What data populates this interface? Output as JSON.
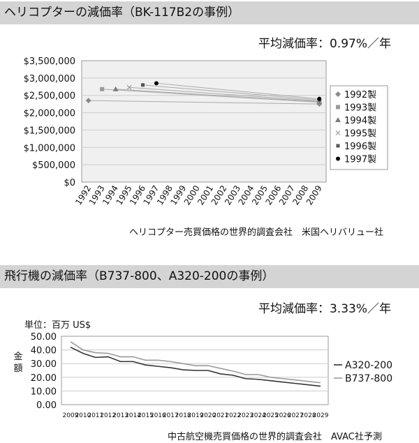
{
  "section1": {
    "title": "ヘリコプターの減価率（BK-117B2の事例）",
    "avg_label": "平均減価率：0.97%／年",
    "source": "ヘリコプター売買価格の世界的調査会社　米国ヘリバリュー社"
  },
  "section2": {
    "title": "飛行機の減価率（B737-800、A320-200の事例）",
    "avg_label": "平均減価率：3.33%／年",
    "unit_label": "単位：百万 US$",
    "ylabel": "金額",
    "source": "中古航空機売買価格の世界的調査会社　AVAC社予測"
  },
  "chart_data": [
    {
      "type": "line",
      "title": "",
      "xlabel": "",
      "ylabel": "",
      "ylim": [
        0,
        3500000
      ],
      "yticks": [
        "$0",
        "$500,000",
        "$1,000,000",
        "$1,500,000",
        "$2,000,000",
        "$2,500,000",
        "$3,000,000",
        "$3,500,000"
      ],
      "categories": [
        "1992",
        "1993",
        "1994",
        "1995",
        "1996",
        "1997",
        "1998",
        "1999",
        "2000",
        "2001",
        "2002",
        "2003",
        "2004",
        "2005",
        "2006",
        "2007",
        "2008",
        "2009"
      ],
      "legend_position": "right",
      "grid": true,
      "series": [
        {
          "name": "1992製",
          "marker": "diamond",
          "color": "#8a8a8a",
          "points": [
            {
              "x": "1992",
              "y": 2350000
            },
            {
              "x": "2009",
              "y": 2250000
            }
          ]
        },
        {
          "name": "1993製",
          "marker": "square",
          "color": "#9a9a9a",
          "points": [
            {
              "x": "1993",
              "y": 2680000
            },
            {
              "x": "2009",
              "y": 2300000
            }
          ]
        },
        {
          "name": "1994製",
          "marker": "triangle",
          "color": "#7a7a7a",
          "points": [
            {
              "x": "1994",
              "y": 2680000
            },
            {
              "x": "2009",
              "y": 2320000
            }
          ]
        },
        {
          "name": "1995製",
          "marker": "x",
          "color": "#9a9a9a",
          "points": [
            {
              "x": "1995",
              "y": 2730000
            },
            {
              "x": "2009",
              "y": 2340000
            }
          ]
        },
        {
          "name": "1996製",
          "marker": "square-small",
          "color": "#555555",
          "points": [
            {
              "x": "1996",
              "y": 2800000
            },
            {
              "x": "2009",
              "y": 2370000
            }
          ]
        },
        {
          "name": "1997製",
          "marker": "circle",
          "color": "#000000",
          "points": [
            {
              "x": "1997",
              "y": 2850000
            },
            {
              "x": "2009",
              "y": 2400000
            }
          ]
        }
      ]
    },
    {
      "type": "line",
      "title": "",
      "xlabel": "",
      "ylabel": "金額",
      "ylim": [
        0,
        50
      ],
      "yticks": [
        "0.00",
        "10.00",
        "20.00",
        "30.00",
        "40.00",
        "50.00"
      ],
      "x": [
        "2009",
        "2010",
        "2011",
        "2012",
        "2013",
        "2014",
        "2015",
        "2016",
        "2017",
        "2018",
        "2019",
        "2020",
        "2021",
        "2022",
        "2023",
        "2024",
        "2025",
        "2026",
        "2027",
        "2028",
        "2029"
      ],
      "legend_position": "right",
      "grid": true,
      "series": [
        {
          "name": "A320-200",
          "color": "#333333",
          "values": [
            42,
            37.5,
            34.5,
            35,
            31.5,
            31.5,
            29,
            28,
            27,
            25.5,
            25,
            25,
            22.5,
            21.5,
            19,
            18.5,
            17.5,
            16.5,
            15.5,
            14.5,
            13.5
          ]
        },
        {
          "name": "B737-800",
          "color": "#9a9a9a",
          "values": [
            46,
            40,
            38,
            37.5,
            35,
            35,
            32.5,
            32.5,
            31.5,
            30,
            28.5,
            28.5,
            26.5,
            24.5,
            22,
            22,
            20,
            19,
            18,
            17,
            16
          ]
        }
      ]
    }
  ]
}
